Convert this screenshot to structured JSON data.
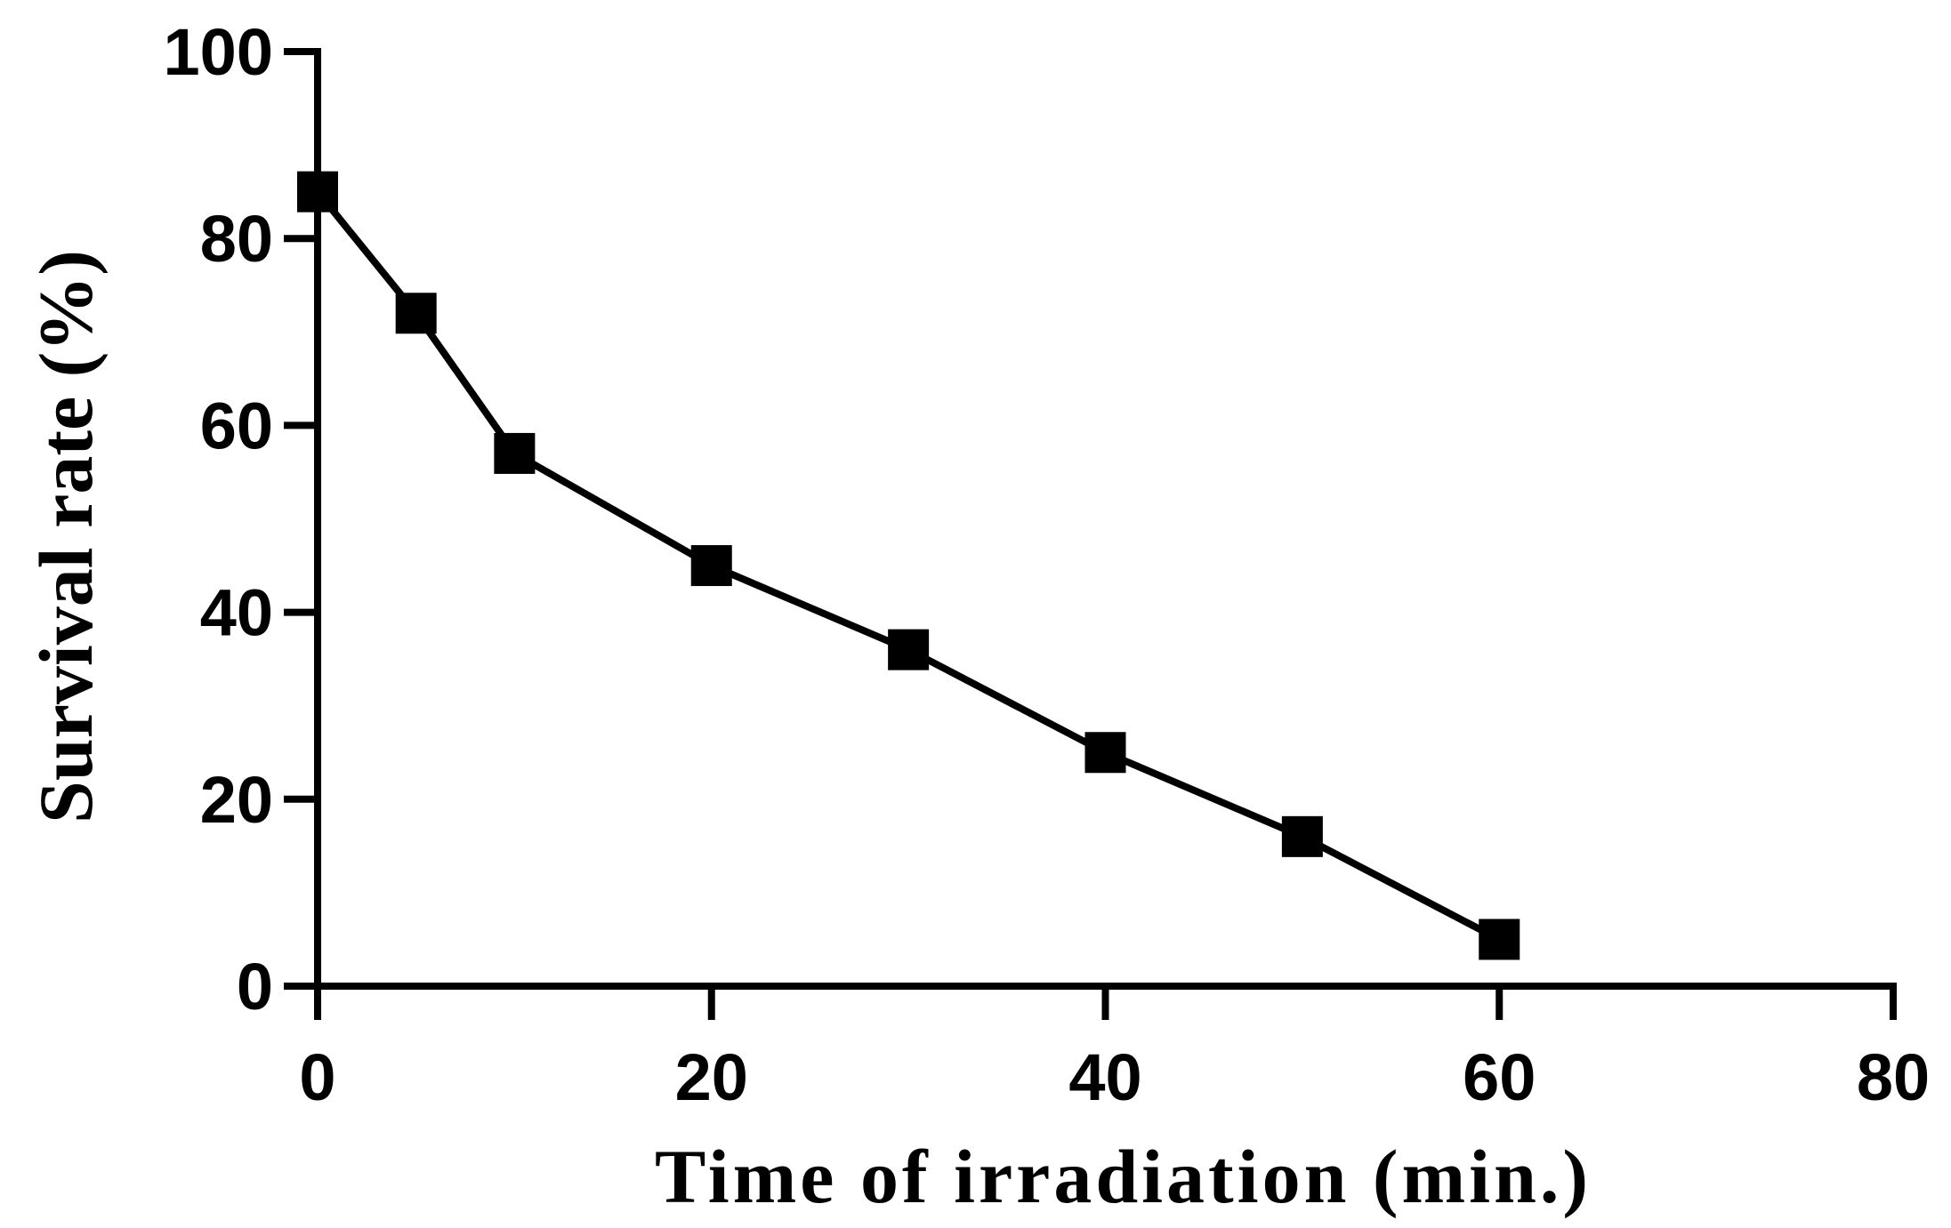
{
  "chart_data": {
    "type": "line",
    "title": "",
    "xlabel": "Time of irradiation (min.)",
    "ylabel": "Survival rate (%)",
    "xlim": [
      0,
      80
    ],
    "ylim": [
      0,
      100
    ],
    "x_ticks": [
      "0",
      "20",
      "40",
      "60",
      "80"
    ],
    "y_ticks": [
      "0",
      "20",
      "40",
      "60",
      "80",
      "100"
    ],
    "grid": false,
    "legend": "none",
    "marker": "square",
    "color": "#000000",
    "series": [
      {
        "x": [
          0,
          5,
          10,
          20,
          30,
          40,
          50,
          60
        ],
        "y": [
          85,
          72,
          57,
          45,
          36,
          25,
          16,
          5
        ]
      }
    ]
  }
}
